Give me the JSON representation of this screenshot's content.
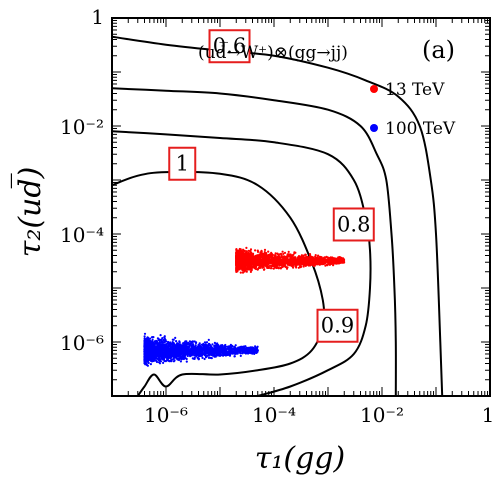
{
  "chart_data": {
    "type": "contour",
    "panel_label": "(a)",
    "process_label": "(ud̅→W⁺)⊗(gg→jj)",
    "xlabel": "τ₁(gg)",
    "ylabel": "τ₂(ud̅)",
    "x_scale": "log",
    "y_scale": "log",
    "xlim": [
      1e-07,
      1
    ],
    "ylim": [
      1e-07,
      1
    ],
    "x_ticks": [
      {
        "value": 1e-06,
        "label": "10⁻⁶"
      },
      {
        "value": 0.0001,
        "label": "10⁻⁴"
      },
      {
        "value": 0.01,
        "label": "10⁻²"
      },
      {
        "value": 1,
        "label": "1"
      }
    ],
    "y_ticks": [
      {
        "value": 1e-06,
        "label": "10⁻⁶"
      },
      {
        "value": 0.0001,
        "label": "10⁻⁴"
      },
      {
        "value": 0.01,
        "label": "10⁻²"
      },
      {
        "value": 1,
        "label": "1"
      }
    ],
    "contours": [
      {
        "level": "0.6",
        "label_at": [
          1.5e-05,
          0.3
        ],
        "points": [
          [
            1e-07,
            0.45
          ],
          [
            1e-06,
            0.32
          ],
          [
            1e-05,
            0.25
          ],
          [
            0.0001,
            0.2
          ],
          [
            0.001,
            0.12
          ],
          [
            0.005,
            0.07
          ],
          [
            0.02,
            0.035
          ],
          [
            0.05,
            0.01
          ],
          [
            0.08,
            0.001
          ],
          [
            0.1,
            0.0001
          ],
          [
            0.12,
            1e-06
          ],
          [
            0.13,
            1e-07
          ]
        ]
      },
      {
        "level": "0.8",
        "label_at": [
          0.003,
          0.00015
        ],
        "points": [
          [
            1e-07,
            0.05
          ],
          [
            1e-06,
            0.045
          ],
          [
            1e-05,
            0.04
          ],
          [
            0.0001,
            0.03
          ],
          [
            0.001,
            0.02
          ],
          [
            0.004,
            0.01
          ],
          [
            0.008,
            0.003
          ],
          [
            0.012,
            0.001
          ],
          [
            0.015,
            0.0001
          ],
          [
            0.017,
            1e-05
          ],
          [
            0.018,
            1e-06
          ],
          [
            0.018,
            1e-07
          ]
        ]
      },
      {
        "level": "0.9",
        "label_at": [
          0.0015,
          2e-06
        ],
        "points": [
          [
            1e-07,
            0.008
          ],
          [
            1e-06,
            0.007
          ],
          [
            1e-05,
            0.006
          ],
          [
            0.0001,
            0.005
          ],
          [
            0.001,
            0.003
          ],
          [
            0.003,
            0.001
          ],
          [
            0.005,
            0.0002
          ],
          [
            0.006,
            5e-05
          ],
          [
            0.006,
            1e-05
          ],
          [
            0.005,
            2e-06
          ],
          [
            0.003,
            6e-07
          ],
          [
            0.001,
            3e-07
          ],
          [
            0.0002,
            1.5e-07
          ],
          [
            5e-05,
            1e-07
          ]
        ]
      },
      {
        "level": "1",
        "label_at": [
          2e-06,
          0.002
        ],
        "points": [
          [
            1e-07,
            0.0008
          ],
          [
            3e-07,
            0.0012
          ],
          [
            1e-06,
            0.0014
          ],
          [
            1e-05,
            0.0013
          ],
          [
            5e-05,
            0.0008
          ],
          [
            0.0002,
            0.0002
          ],
          [
            0.0005,
            3e-05
          ],
          [
            0.0008,
            6e-06
          ],
          [
            0.0008,
            2e-06
          ],
          [
            0.0005,
            7e-07
          ],
          [
            0.0002,
            4e-07
          ],
          [
            5e-05,
            3e-07
          ],
          [
            1e-05,
            2.5e-07
          ],
          [
            2e-06,
            2.5e-07
          ],
          [
            1e-06,
            1.5e-07
          ],
          [
            6e-07,
            2.5e-07
          ],
          [
            4e-07,
            1.5e-07
          ],
          [
            3e-07,
            1e-07
          ]
        ]
      }
    ],
    "series": [
      {
        "name": "13 TeV",
        "color": "#ff0000",
        "x_range": [
          2e-05,
          0.002
        ],
        "y_center": 3.2e-05,
        "y_spread": [
          1.5e-05,
          6e-05
        ]
      },
      {
        "name": "100 TeV",
        "color": "#0000ff",
        "x_range": [
          4e-07,
          5e-05
        ],
        "y_center": 7e-07,
        "y_spread": [
          3e-07,
          1.6e-06
        ]
      }
    ],
    "colors": {
      "label_box": "#e51e1e",
      "contour": "#000000",
      "frame": "#000000"
    }
  }
}
